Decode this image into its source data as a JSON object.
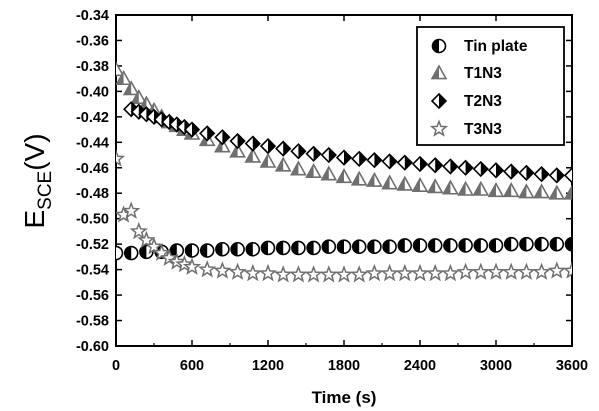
{
  "chart_data": {
    "type": "scatter",
    "xlabel": "Time (s)",
    "ylabel": {
      "main": "E",
      "sub": "SCE",
      "unit": "(V)"
    },
    "xlim": [
      0,
      3600
    ],
    "ylim": [
      -0.6,
      -0.34
    ],
    "x_ticks": [
      "0",
      "600",
      "1200",
      "1800",
      "2400",
      "3000",
      "3600"
    ],
    "y_ticks": [
      "-0.34",
      "-0.36",
      "-0.38",
      "-0.40",
      "-0.42",
      "-0.44",
      "-0.46",
      "-0.48",
      "-0.50",
      "-0.52",
      "-0.54",
      "-0.56",
      "-0.58",
      "-0.60"
    ],
    "grid": false,
    "legend_position": "top-right",
    "series": [
      {
        "name": "Tin plate",
        "marker": "circle-half",
        "color": "#000000",
        "x": [
          0,
          120,
          240,
          360,
          480,
          600,
          720,
          840,
          960,
          1080,
          1200,
          1320,
          1440,
          1560,
          1680,
          1800,
          1920,
          2040,
          2160,
          2280,
          2400,
          2520,
          2640,
          2760,
          2880,
          3000,
          3120,
          3240,
          3360,
          3480,
          3600
        ],
        "y": [
          -0.527,
          -0.527,
          -0.526,
          -0.526,
          -0.525,
          -0.525,
          -0.525,
          -0.524,
          -0.524,
          -0.524,
          -0.523,
          -0.523,
          -0.523,
          -0.523,
          -0.522,
          -0.522,
          -0.522,
          -0.522,
          -0.522,
          -0.521,
          -0.521,
          -0.521,
          -0.521,
          -0.521,
          -0.521,
          -0.521,
          -0.52,
          -0.52,
          -0.52,
          -0.52,
          -0.52
        ]
      },
      {
        "name": "T1N3",
        "marker": "triangle",
        "color": "#6f6f6f",
        "x": [
          0,
          60,
          120,
          180,
          240,
          300,
          360,
          420,
          480,
          540,
          600,
          720,
          840,
          960,
          1080,
          1200,
          1320,
          1440,
          1560,
          1680,
          1800,
          1920,
          2040,
          2160,
          2280,
          2400,
          2520,
          2640,
          2760,
          2880,
          3000,
          3120,
          3240,
          3360,
          3480,
          3600
        ],
        "y": [
          -0.383,
          -0.39,
          -0.398,
          -0.405,
          -0.41,
          -0.415,
          -0.42,
          -0.424,
          -0.427,
          -0.43,
          -0.433,
          -0.438,
          -0.443,
          -0.447,
          -0.451,
          -0.455,
          -0.458,
          -0.461,
          -0.463,
          -0.465,
          -0.467,
          -0.469,
          -0.47,
          -0.472,
          -0.473,
          -0.474,
          -0.475,
          -0.476,
          -0.477,
          -0.477,
          -0.478,
          -0.478,
          -0.479,
          -0.479,
          -0.48,
          -0.48
        ]
      },
      {
        "name": "T2N3",
        "marker": "diamond-half",
        "color": "#000000",
        "x": [
          120,
          180,
          240,
          300,
          360,
          420,
          480,
          540,
          600,
          720,
          840,
          960,
          1080,
          1200,
          1320,
          1440,
          1560,
          1680,
          1800,
          1920,
          2040,
          2160,
          2280,
          2400,
          2520,
          2640,
          2760,
          2880,
          3000,
          3120,
          3240,
          3360,
          3480,
          3600
        ],
        "y": [
          -0.414,
          -0.416,
          -0.418,
          -0.42,
          -0.422,
          -0.424,
          -0.426,
          -0.428,
          -0.43,
          -0.433,
          -0.436,
          -0.439,
          -0.441,
          -0.443,
          -0.445,
          -0.447,
          -0.449,
          -0.45,
          -0.452,
          -0.453,
          -0.454,
          -0.455,
          -0.456,
          -0.457,
          -0.458,
          -0.459,
          -0.46,
          -0.461,
          -0.462,
          -0.463,
          -0.464,
          -0.465,
          -0.466,
          -0.466
        ]
      },
      {
        "name": "T3N3",
        "marker": "star",
        "color": "#6f6f6f",
        "x": [
          0,
          60,
          120,
          180,
          240,
          300,
          360,
          420,
          480,
          540,
          600,
          720,
          840,
          960,
          1080,
          1200,
          1320,
          1440,
          1560,
          1680,
          1800,
          1920,
          2040,
          2160,
          2280,
          2400,
          2520,
          2640,
          2760,
          2880,
          3000,
          3120,
          3240,
          3360,
          3480,
          3600
        ],
        "y": [
          -0.453,
          -0.497,
          -0.494,
          -0.51,
          -0.517,
          -0.522,
          -0.527,
          -0.531,
          -0.534,
          -0.536,
          -0.538,
          -0.54,
          -0.541,
          -0.542,
          -0.543,
          -0.543,
          -0.544,
          -0.544,
          -0.544,
          -0.544,
          -0.544,
          -0.544,
          -0.543,
          -0.543,
          -0.543,
          -0.543,
          -0.543,
          -0.543,
          -0.542,
          -0.542,
          -0.542,
          -0.542,
          -0.542,
          -0.542,
          -0.541,
          -0.541
        ]
      }
    ]
  }
}
